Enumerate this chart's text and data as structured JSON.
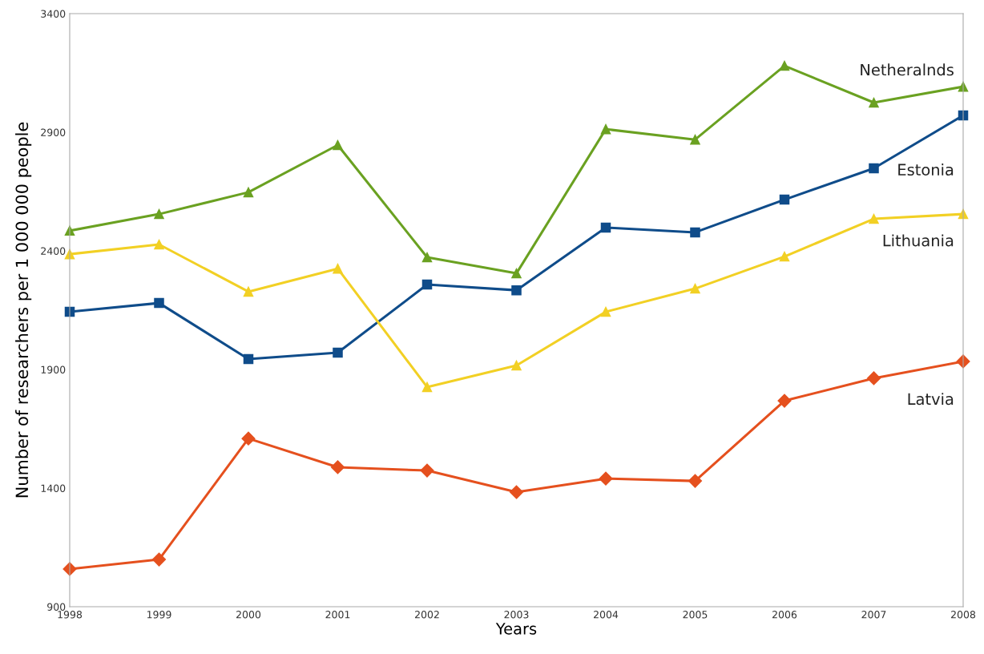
{
  "chart_data": {
    "type": "line",
    "xlabel": "Years",
    "ylabel": "Number of researchers per 1 000 000 people",
    "x": [
      1998,
      1999,
      2000,
      2001,
      2002,
      2003,
      2004,
      2005,
      2006,
      2007,
      2008
    ],
    "xlim": [
      1998,
      2008
    ],
    "xticks": [
      1998,
      1999,
      2000,
      2001,
      2002,
      2003,
      2004,
      2005,
      2006,
      2007,
      2008
    ],
    "ylim": [
      900,
      3400
    ],
    "yticks": [
      900,
      1400,
      1900,
      2400,
      2900,
      3400
    ],
    "grid": false,
    "legend": false,
    "series": [
      {
        "name": "Netheralnds",
        "color": "#6aa121",
        "marker": "triangle",
        "values": [
          2485,
          2555,
          2647,
          2846,
          2373,
          2305,
          2913,
          2869,
          3180,
          3025,
          3092
        ]
      },
      {
        "name": "Estonia",
        "color": "#0f4c8a",
        "marker": "square",
        "values": [
          2143,
          2180,
          1944,
          1971,
          2258,
          2234,
          2498,
          2478,
          2616,
          2748,
          2971
        ]
      },
      {
        "name": "Lithuania",
        "color": "#f2d024",
        "marker": "triangle",
        "values": [
          2386,
          2427,
          2228,
          2325,
          1826,
          1917,
          2143,
          2241,
          2376,
          2535,
          2555
        ]
      },
      {
        "name": "Latvia",
        "color": "#e5501e",
        "marker": "diamond",
        "values": [
          1059,
          1099,
          1609,
          1488,
          1474,
          1383,
          1440,
          1430,
          1768,
          1863,
          1934
        ]
      }
    ]
  }
}
